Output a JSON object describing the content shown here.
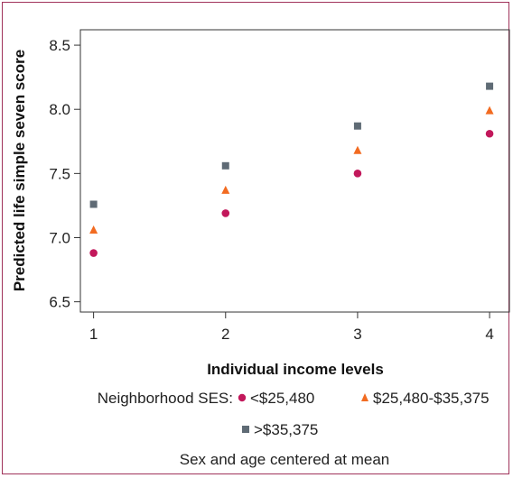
{
  "chart_data": {
    "type": "scatter",
    "title": "",
    "xlabel": "Individual income levels",
    "ylabel": "Predicted life simple seven score",
    "x": [
      1,
      2,
      3,
      4
    ],
    "xlim": [
      0.9,
      4.15
    ],
    "ylim": [
      6.42,
      8.62
    ],
    "x_ticks": [
      "1",
      "2",
      "3",
      "4"
    ],
    "y_ticks": [
      "6.5",
      "7.0",
      "7.5",
      "8.0",
      "8.5"
    ],
    "y_tick_values": [
      6.5,
      7.0,
      7.5,
      8.0,
      8.5
    ],
    "grid": false,
    "legend_title": "Neighborhood SES:",
    "legend_position": "bottom",
    "series": [
      {
        "name": "<$25,480",
        "marker": "circle",
        "color": "#c2185b",
        "values": [
          6.88,
          7.19,
          7.5,
          7.81
        ]
      },
      {
        "name": "$25,480-$35,375",
        "marker": "triangle",
        "color": "#f26b21",
        "values": [
          7.06,
          7.37,
          7.68,
          7.99
        ]
      },
      {
        "name": ">$35,375",
        "marker": "square",
        "color": "#5f6b75",
        "values": [
          7.26,
          7.56,
          7.87,
          8.18
        ]
      }
    ],
    "annotation": "Sex and age centered at mean"
  }
}
